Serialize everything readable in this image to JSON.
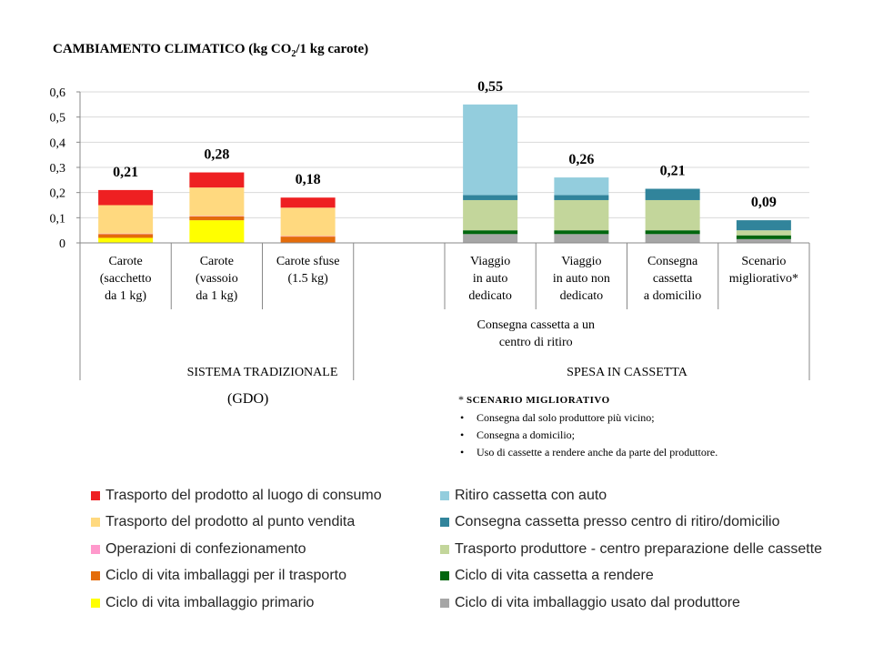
{
  "title_parts": [
    "CAMBIAMENTO CLIMATICO (kg CO",
    "2",
    "/1 kg carote)"
  ],
  "chart_data": {
    "type": "bar",
    "stacked": true,
    "ylim": [
      0,
      0.6
    ],
    "yticks": [
      "0",
      "0,1",
      "0,2",
      "0,3",
      "0,4",
      "0,5",
      "0,6"
    ],
    "grid": true,
    "categories": [
      [
        "Carote",
        "(sacchetto",
        "da 1 kg)"
      ],
      [
        "Carote",
        "(vassoio",
        "da 1 kg)"
      ],
      [
        "Carote sfuse",
        "(1.5 kg)"
      ],
      [],
      [
        "Viaggio",
        "in auto",
        "dedicato"
      ],
      [
        "Viaggio",
        "in auto non",
        "dedicato"
      ],
      [
        "Consegna",
        "cassetta",
        "a domicilio"
      ],
      [
        "Scenario",
        "migliorativo*"
      ]
    ],
    "totals": [
      "0,21",
      "0,28",
      "0,18",
      "",
      "0,55",
      "0,26",
      "0,21",
      "0,09"
    ],
    "series": [
      {
        "name": "Ciclo di vita imballaggio primario",
        "color": "#FFFF00",
        "values": [
          0.02,
          0.09,
          0,
          0,
          0,
          0,
          0,
          0
        ]
      },
      {
        "name": "Ciclo di vita imballaggi per il trasporto",
        "color": "#E46C0A",
        "values": [
          0.015,
          0.015,
          0.025,
          0,
          0,
          0,
          0,
          0
        ]
      },
      {
        "name": "Operazioni di confezionamento",
        "color": "#FF99CC",
        "values": [
          0.002,
          0.002,
          0.002,
          0,
          0,
          0,
          0,
          0
        ]
      },
      {
        "name": "Trasporto del prodotto al punto vendita",
        "color": "#FFD97F",
        "values": [
          0.113,
          0.113,
          0.113,
          0,
          0,
          0,
          0,
          0
        ]
      },
      {
        "name": "Trasporto del prodotto al luogo di consumo",
        "color": "#EE2022",
        "values": [
          0.06,
          0.06,
          0.04,
          0,
          0,
          0,
          0,
          0
        ]
      },
      {
        "name": "Ciclo di vita imballaggio usato dal produttore",
        "color": "#A6A6A6",
        "values": [
          0,
          0,
          0,
          0,
          0.035,
          0.035,
          0.035,
          0.015
        ]
      },
      {
        "name": "Ciclo di vita cassetta a rendere",
        "color": "#00660E",
        "values": [
          0,
          0,
          0,
          0,
          0.015,
          0.015,
          0.015,
          0.015
        ]
      },
      {
        "name": "Trasporto produttore - centro preparazione delle cassette",
        "color": "#C3D69B",
        "values": [
          0,
          0,
          0,
          0,
          0.12,
          0.12,
          0.12,
          0.02
        ]
      },
      {
        "name": "Consegna cassetta presso centro di ritiro/domicilio",
        "color": "#31849B",
        "values": [
          0,
          0,
          0,
          0,
          0.02,
          0.02,
          0.045,
          0.04
        ]
      },
      {
        "name": "Ritiro cassetta con auto",
        "color": "#93CDDD",
        "values": [
          0,
          0,
          0,
          0,
          0.36,
          0.07,
          0,
          0
        ]
      }
    ],
    "subgroup_label": [
      "Consegna cassetta a un",
      "centro di ritiro"
    ],
    "group_labels": [
      "SISTEMA TRADIZIONALE",
      "SPESA IN CASSETTA"
    ]
  },
  "gdo_label": "(GDO)",
  "note": {
    "title": "SCENARIO MIGLIORATIVO",
    "items": [
      "Consegna dal solo produttore più vicino;",
      "Consegna a domicilio;",
      "Uso di cassette a rendere anche da parte del produttore."
    ]
  },
  "legend_left": [
    {
      "label": "Trasporto del prodotto al luogo di consumo",
      "color": "#EE2022"
    },
    {
      "label": "Trasporto del prodotto al punto vendita",
      "color": "#FFD97F"
    },
    {
      "label": "Operazioni di confezionamento",
      "color": "#FF99CC"
    },
    {
      "label": "Ciclo di vita imballaggi per il trasporto",
      "color": "#E46C0A"
    },
    {
      "label": "Ciclo di vita imballaggio primario",
      "color": "#FFFF00"
    }
  ],
  "legend_right": [
    {
      "label": "Ritiro cassetta con auto",
      "color": "#93CDDD"
    },
    {
      "label": "Consegna cassetta presso centro di ritiro/domicilio",
      "color": "#31849B"
    },
    {
      "label": "Trasporto produttore - centro preparazione delle cassette",
      "color": "#C3D69B"
    },
    {
      "label": "Ciclo di vita cassetta a rendere",
      "color": "#00660E"
    },
    {
      "label": "Ciclo di vita imballaggio usato dal produttore",
      "color": "#A6A6A6"
    }
  ]
}
